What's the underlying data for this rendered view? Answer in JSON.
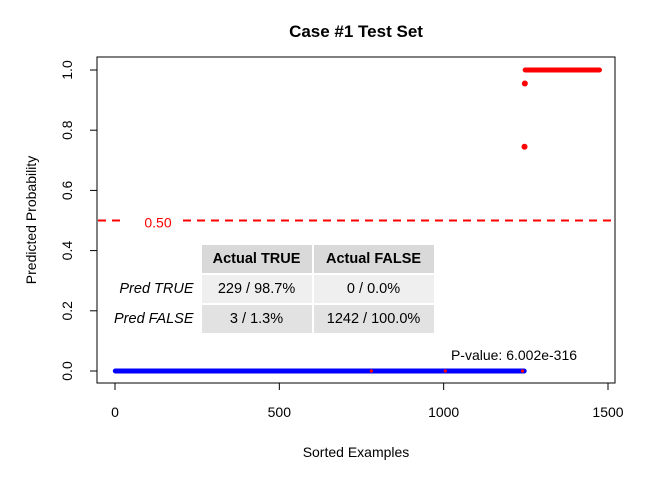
{
  "chart_data": {
    "type": "scatter",
    "title": "Case #1 Test Set",
    "xlabel": "Sorted Examples",
    "ylabel": "Predicted Probability",
    "xlim": [
      0,
      1500
    ],
    "ylim": [
      0,
      1.0
    ],
    "x_ticks": [
      0,
      500,
      1000,
      1500
    ],
    "x_tick_labels": [
      "0",
      "500",
      "1000",
      "1500"
    ],
    "y_ticks": [
      0.0,
      0.2,
      0.4,
      0.6,
      0.8,
      1.0
    ],
    "y_tick_labels": [
      "0.0",
      "0.2",
      "0.4",
      "0.6",
      "0.8",
      "1.0"
    ],
    "grid": false,
    "colors": {
      "negative": "#0000ff",
      "positive": "#ff0000",
      "threshold": "#ff0000"
    },
    "series": [
      {
        "color_key": "negative",
        "x_range": [
          1,
          1245
        ],
        "y": 0.0
      },
      {
        "color_key": "positive",
        "points": [
          [
            1246,
            0.745
          ],
          [
            1247,
            0.955
          ]
        ],
        "x_range": [
          1248,
          1474
        ],
        "y": 1.0
      }
    ],
    "misclassified_marks": [
      {
        "x": 780,
        "y": 0.0,
        "color_key": "positive"
      },
      {
        "x": 1005,
        "y": 0.0,
        "color_key": "positive"
      },
      {
        "x": 1240,
        "y": 0.0,
        "color_key": "positive"
      }
    ],
    "threshold": {
      "value": 0.5,
      "label": "0.50"
    },
    "annotations": {
      "pvalue": "P-value: 6.002e-316"
    },
    "confusion_table": {
      "col_headers": [
        "Actual TRUE",
        "Actual FALSE"
      ],
      "rows": [
        {
          "label": "Pred TRUE",
          "values": [
            "229 / 98.7%",
            "0 / 0.0%"
          ]
        },
        {
          "label": "Pred FALSE",
          "values": [
            "3 / 1.3%",
            "1242 / 100.0%"
          ]
        }
      ]
    }
  }
}
